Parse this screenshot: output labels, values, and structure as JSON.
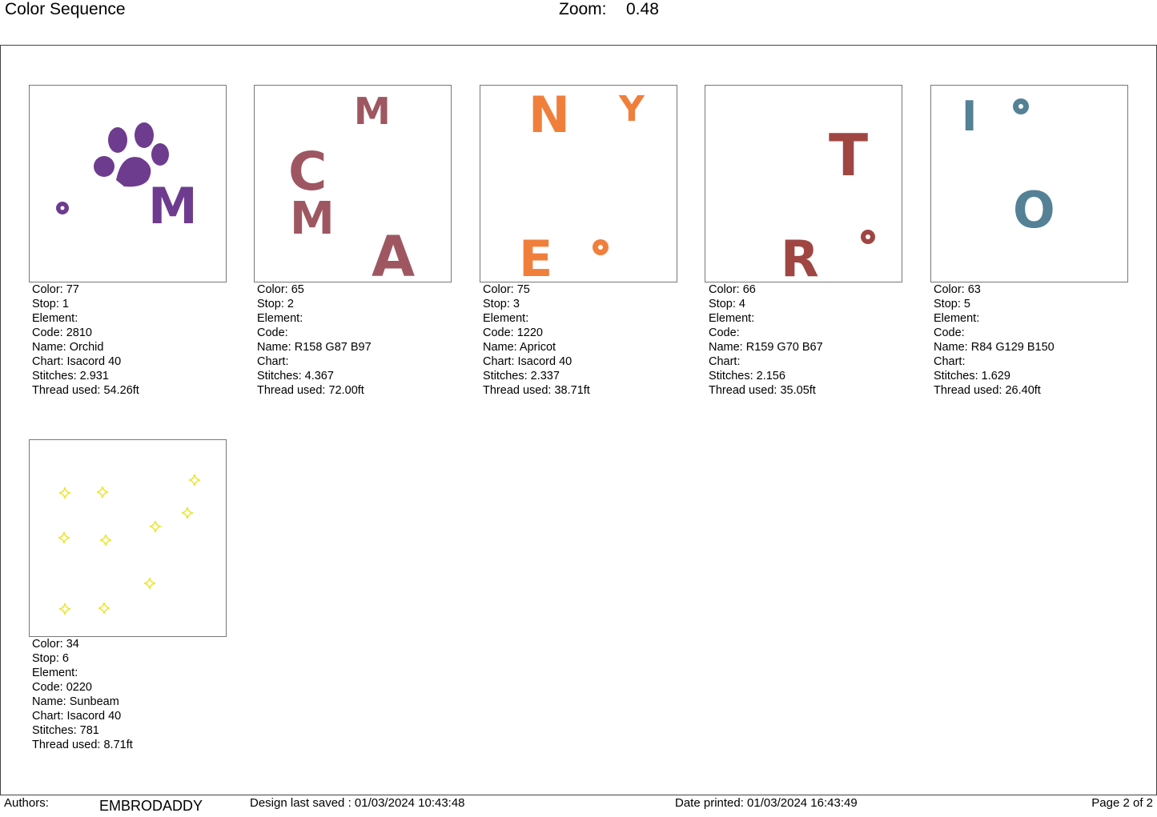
{
  "header": {
    "title": "Color Sequence",
    "zoom_label": "Zoom:",
    "zoom_value": "0.48"
  },
  "stops": [
    {
      "color": "Color: 77",
      "stop": "Stop: 1",
      "element": "Element:",
      "code": "Code: 2810",
      "name": "Name: Orchid",
      "chart": "Chart: Isacord 40",
      "stitches": "Stitches: 2.931",
      "thread": "Thread used: 54.26ft",
      "hex": "#6e3c8e",
      "letters": [
        "M"
      ]
    },
    {
      "color": "Color: 65",
      "stop": "Stop: 2",
      "element": "Element:",
      "code": "Code:",
      "name": "Name: R158 G87 B97",
      "chart": "Chart:",
      "stitches": "Stitches: 4.367",
      "thread": "Thread used: 72.00ft",
      "hex": "#9e5761",
      "letters": [
        "M",
        "C",
        "M",
        "A"
      ]
    },
    {
      "color": "Color: 75",
      "stop": "Stop: 3",
      "element": "Element:",
      "code": "Code: 1220",
      "name": "Name: Apricot",
      "chart": "Chart: Isacord 40",
      "stitches": "Stitches: 2.337",
      "thread": "Thread used: 38.71ft",
      "hex": "#f07f3c",
      "letters": [
        "N",
        "Y",
        "E"
      ]
    },
    {
      "color": "Color: 66",
      "stop": "Stop: 4",
      "element": "Element:",
      "code": "Code:",
      "name": "Name: R159 G70 B67",
      "chart": "Chart:",
      "stitches": "Stitches: 2.156",
      "thread": "Thread used: 35.05ft",
      "hex": "#9f4643",
      "letters": [
        "T",
        "R"
      ]
    },
    {
      "color": "Color: 63",
      "stop": "Stop: 5",
      "element": "Element:",
      "code": "Code:",
      "name": "Name: R84 G129 B150",
      "chart": "Chart:",
      "stitches": "Stitches: 1.629",
      "thread": "Thread used: 26.40ft",
      "hex": "#548196",
      "letters": [
        "I",
        "O"
      ]
    },
    {
      "color": "Color: 34",
      "stop": "Stop: 6",
      "element": "Element:",
      "code": "Code: 0220",
      "name": "Name: Sunbeam",
      "chart": "Chart: Isacord 40",
      "stitches": "Stitches: 781",
      "thread": "Thread used: 8.71ft",
      "hex": "#ece63a",
      "letters": []
    }
  ],
  "footer": {
    "authors_label": "Authors:",
    "authors": "EMBRODADDY",
    "saved": "Design last saved : 01/03/2024 10:43:48",
    "printed": "Date printed: 01/03/2024 16:43:49",
    "page": "Page 2 of 2"
  }
}
